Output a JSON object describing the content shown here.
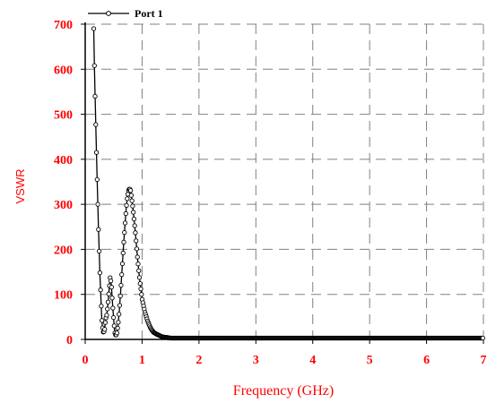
{
  "chart_data": {
    "type": "line",
    "title": "",
    "xlabel": "Frequency (GHz)",
    "ylabel": "VSWR",
    "xlim": [
      0,
      7
    ],
    "ylim": [
      0,
      700
    ],
    "xticks": [
      0,
      1,
      2,
      3,
      4,
      5,
      6,
      7
    ],
    "yticks": [
      0,
      100,
      200,
      300,
      400,
      500,
      600,
      700
    ],
    "grid": true,
    "legend_position": "top-left",
    "colors": {
      "axis_text": "#ff0000",
      "line": "#000000",
      "grid": "#808080"
    },
    "series": [
      {
        "name": "Port 1",
        "marker": "circle",
        "x": [
          0.15,
          0.16,
          0.17,
          0.18,
          0.19,
          0.2,
          0.21,
          0.22,
          0.23,
          0.24,
          0.25,
          0.26,
          0.27,
          0.28,
          0.29,
          0.3,
          0.32,
          0.34,
          0.36,
          0.38,
          0.4,
          0.42,
          0.44,
          0.46,
          0.48,
          0.5,
          0.52,
          0.54,
          0.56,
          0.58,
          0.6,
          0.62,
          0.64,
          0.66,
          0.68,
          0.7,
          0.72,
          0.74,
          0.76,
          0.78,
          0.8,
          0.82,
          0.84,
          0.86,
          0.88,
          0.9,
          0.92,
          0.94,
          0.96,
          0.98,
          1.0,
          1.05,
          1.1,
          1.15,
          1.2,
          1.25,
          1.3,
          1.35,
          1.4,
          1.45,
          1.5,
          1.6,
          1.7,
          1.8,
          2.0,
          2.5,
          3.0,
          3.5,
          4.0,
          4.5,
          5.0,
          5.5,
          6.0,
          6.5,
          7.0
        ],
        "y": [
          690,
          620,
          560,
          510,
          455,
          405,
          355,
          310,
          260,
          220,
          180,
          140,
          110,
          80,
          50,
          30,
          15,
          20,
          45,
          55,
          80,
          110,
          140,
          120,
          80,
          45,
          15,
          8,
          15,
          35,
          65,
          100,
          140,
          180,
          220,
          255,
          290,
          315,
          330,
          335,
          330,
          310,
          290,
          265,
          240,
          210,
          180,
          155,
          130,
          110,
          90,
          60,
          40,
          25,
          16,
          12,
          9,
          6,
          5,
          4,
          3,
          3,
          3,
          3,
          3,
          3,
          3,
          3,
          3,
          3,
          3,
          3,
          3,
          3,
          3
        ]
      }
    ]
  }
}
